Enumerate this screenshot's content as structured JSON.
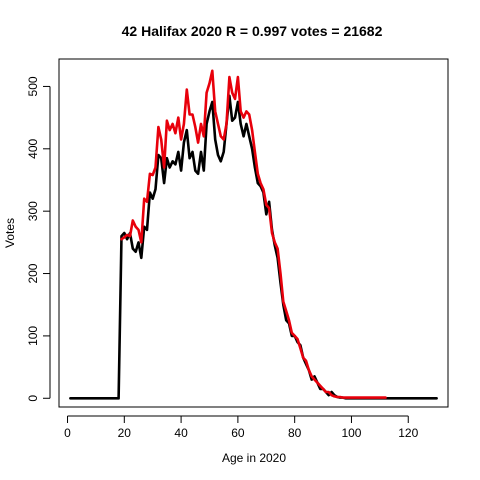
{
  "chart_data": {
    "type": "line",
    "title": "42 Halifax 2020 R = 0.997 votes = 21682",
    "xlabel": "Age in 2020",
    "ylabel": "Votes",
    "xlim": [
      -3,
      134
    ],
    "ylim": [
      -14,
      544
    ],
    "xticks": [
      0,
      20,
      40,
      60,
      80,
      100,
      120
    ],
    "yticks": [
      0,
      100,
      200,
      300,
      400,
      500
    ],
    "grid": false,
    "legend": "none",
    "series": [
      {
        "color": "#000000",
        "x": [
          1,
          2,
          3,
          4,
          5,
          6,
          7,
          8,
          9,
          10,
          11,
          12,
          13,
          14,
          15,
          16,
          17,
          18,
          19,
          20,
          21,
          22,
          23,
          24,
          25,
          26,
          27,
          28,
          29,
          30,
          31,
          32,
          33,
          34,
          35,
          36,
          37,
          38,
          39,
          40,
          41,
          42,
          43,
          44,
          45,
          46,
          47,
          48,
          49,
          50,
          51,
          52,
          53,
          54,
          55,
          56,
          57,
          58,
          59,
          60,
          61,
          62,
          63,
          64,
          65,
          66,
          67,
          68,
          69,
          70,
          71,
          72,
          73,
          74,
          75,
          76,
          77,
          78,
          79,
          80,
          81,
          82,
          83,
          84,
          85,
          86,
          87,
          88,
          89,
          90,
          91,
          92,
          93,
          94,
          95,
          96,
          97,
          98,
          99,
          100,
          101,
          102,
          103,
          104,
          105,
          106,
          107,
          108,
          109,
          110,
          111,
          112,
          113,
          114,
          115,
          116,
          117,
          118,
          119,
          120,
          121,
          122,
          123,
          124,
          125,
          126,
          127,
          128,
          129,
          130
        ],
        "y": [
          0,
          0,
          0,
          0,
          0,
          0,
          0,
          0,
          0,
          0,
          0,
          0,
          0,
          0,
          0,
          0,
          0,
          0,
          260,
          265,
          255,
          265,
          240,
          235,
          250,
          225,
          275,
          270,
          330,
          320,
          335,
          390,
          385,
          345,
          385,
          370,
          380,
          375,
          395,
          365,
          410,
          430,
          385,
          395,
          365,
          360,
          395,
          365,
          440,
          460,
          475,
          415,
          390,
          380,
          395,
          440,
          485,
          445,
          450,
          475,
          440,
          420,
          440,
          420,
          400,
          370,
          345,
          340,
          330,
          295,
          315,
          270,
          245,
          225,
          185,
          150,
          125,
          120,
          100,
          100,
          90,
          85,
          65,
          55,
          45,
          30,
          35,
          25,
          15,
          15,
          10,
          5,
          10,
          5,
          2,
          1,
          1,
          0,
          0,
          0,
          0,
          0,
          0,
          0,
          0,
          0,
          0,
          0,
          0,
          0,
          0,
          0,
          0,
          0,
          0,
          0,
          0,
          0,
          0,
          0,
          0,
          0,
          0,
          0,
          0,
          0,
          0,
          0,
          0,
          0
        ]
      },
      {
        "color": "#e8000b",
        "x": [
          19,
          20,
          21,
          22,
          23,
          24,
          25,
          26,
          27,
          28,
          29,
          30,
          31,
          32,
          33,
          34,
          35,
          36,
          37,
          38,
          39,
          40,
          41,
          42,
          43,
          44,
          45,
          46,
          47,
          48,
          49,
          50,
          51,
          52,
          53,
          54,
          55,
          56,
          57,
          58,
          59,
          60,
          61,
          62,
          63,
          64,
          65,
          66,
          67,
          68,
          69,
          70,
          71,
          72,
          73,
          74,
          75,
          76,
          77,
          78,
          79,
          80,
          81,
          82,
          83,
          84,
          85,
          86,
          87,
          88,
          89,
          90,
          91,
          92,
          93,
          94,
          95,
          96,
          97,
          98,
          99,
          100,
          101,
          102,
          103,
          104,
          105,
          106,
          107,
          108,
          109,
          110,
          111,
          112
        ],
        "y": [
          255,
          258,
          262,
          260,
          285,
          275,
          270,
          250,
          320,
          315,
          360,
          358,
          370,
          435,
          415,
          370,
          445,
          430,
          440,
          425,
          450,
          415,
          440,
          495,
          455,
          455,
          435,
          410,
          440,
          420,
          490,
          505,
          525,
          460,
          440,
          420,
          415,
          440,
          515,
          490,
          480,
          515,
          460,
          450,
          460,
          455,
          430,
          395,
          360,
          345,
          335,
          310,
          305,
          265,
          250,
          240,
          200,
          155,
          140,
          125,
          105,
          100,
          95,
          80,
          65,
          60,
          45,
          35,
          30,
          25,
          20,
          15,
          10,
          10,
          5,
          3,
          2,
          2,
          1,
          1,
          1,
          1,
          1,
          1,
          1,
          1,
          1,
          1,
          1,
          1,
          1,
          1,
          1,
          1
        ]
      }
    ]
  }
}
